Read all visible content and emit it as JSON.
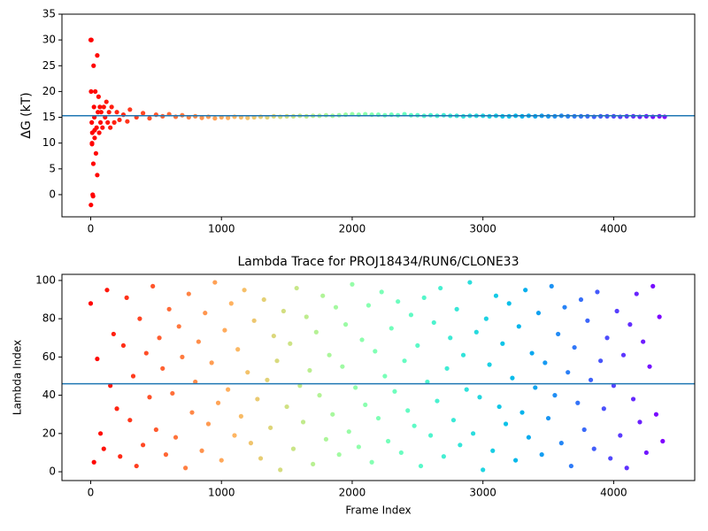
{
  "chart_data": [
    {
      "type": "scatter",
      "ylabel": "ΔG (kT)",
      "colormap": "rainbow_r",
      "hline": 15.3,
      "hline_color": "#1f77b4",
      "xlim": [
        -220,
        4620
      ],
      "ylim": [
        -4.3,
        35
      ],
      "xticks": [
        0,
        1000,
        2000,
        3000,
        4000
      ],
      "yticks": [
        0,
        5,
        10,
        15,
        20,
        25,
        30,
        35
      ],
      "x": [
        0,
        2,
        3,
        5,
        8,
        10,
        10,
        12,
        15,
        18,
        20,
        22,
        25,
        28,
        30,
        30,
        35,
        40,
        45,
        50,
        50,
        55,
        60,
        65,
        70,
        75,
        80,
        90,
        100,
        110,
        120,
        130,
        140,
        150,
        160,
        180,
        200,
        220,
        250,
        280,
        300,
        350,
        400,
        450,
        500,
        550,
        600,
        650,
        700,
        750,
        800,
        850,
        900,
        950,
        1000,
        1050,
        1100,
        1150,
        1200,
        1250,
        1300,
        1350,
        1400,
        1450,
        1500,
        1550,
        1600,
        1650,
        1700,
        1750,
        1800,
        1850,
        1900,
        1950,
        2000,
        2050,
        2100,
        2150,
        2200,
        2250,
        2300,
        2350,
        2400,
        2450,
        2500,
        2550,
        2600,
        2650,
        2700,
        2750,
        2800,
        2850,
        2900,
        2950,
        3000,
        3050,
        3100,
        3150,
        3200,
        3250,
        3300,
        3350,
        3400,
        3450,
        3500,
        3550,
        3600,
        3650,
        3700,
        3750,
        3800,
        3850,
        3900,
        3950,
        4000,
        4050,
        4100,
        4150,
        4200,
        4250,
        4300,
        4350,
        4390
      ],
      "values": [
        30,
        -2,
        20,
        30,
        14,
        10,
        9.8,
        12,
        0,
        -0.3,
        6,
        25,
        17,
        15,
        11,
        12.5,
        20,
        8,
        13,
        27,
        3.8,
        16,
        19,
        12,
        17,
        14,
        16,
        13,
        17,
        15,
        18,
        14,
        16,
        13,
        17,
        14,
        16,
        14.5,
        15.5,
        14.2,
        16.5,
        15,
        15.8,
        14.8,
        15.5,
        15.2,
        15.6,
        15.1,
        15.4,
        15.0,
        15.2,
        14.9,
        15.1,
        14.8,
        15.0,
        14.9,
        15.1,
        15.0,
        14.9,
        15.0,
        15.1,
        15.0,
        15.2,
        15.1,
        15.2,
        15.2,
        15.3,
        15.2,
        15.3,
        15.3,
        15.4,
        15.3,
        15.4,
        15.5,
        15.6,
        15.5,
        15.6,
        15.5,
        15.5,
        15.4,
        15.5,
        15.4,
        15.6,
        15.4,
        15.4,
        15.3,
        15.4,
        15.3,
        15.4,
        15.3,
        15.3,
        15.2,
        15.3,
        15.3,
        15.3,
        15.2,
        15.3,
        15.2,
        15.2,
        15.3,
        15.2,
        15.3,
        15.2,
        15.3,
        15.2,
        15.2,
        15.3,
        15.2,
        15.2,
        15.2,
        15.2,
        15.1,
        15.2,
        15.2,
        15.2,
        15.1,
        15.2,
        15.2,
        15.1,
        15.2,
        15.1,
        15.2,
        15.1
      ]
    },
    {
      "type": "scatter",
      "title": "Lambda Trace for PROJ18434/RUN6/CLONE33",
      "xlabel": "Frame Index",
      "ylabel": "Lambda Index",
      "colormap": "rainbow_r",
      "hline": 46,
      "hline_color": "#1f77b4",
      "xlim": [
        -220,
        4620
      ],
      "ylim": [
        -4.6,
        103.2
      ],
      "xticks": [
        0,
        1000,
        2000,
        3000,
        4000
      ],
      "yticks": [
        0,
        20,
        40,
        60,
        80,
        100
      ],
      "x": [
        0,
        25,
        50,
        75,
        100,
        125,
        150,
        175,
        200,
        225,
        250,
        275,
        300,
        325,
        350,
        375,
        400,
        425,
        450,
        475,
        500,
        525,
        550,
        575,
        600,
        625,
        650,
        675,
        700,
        725,
        750,
        775,
        800,
        825,
        850,
        875,
        900,
        925,
        950,
        975,
        1000,
        1025,
        1050,
        1075,
        1100,
        1125,
        1150,
        1175,
        1200,
        1225,
        1250,
        1275,
        1300,
        1325,
        1350,
        1375,
        1400,
        1425,
        1450,
        1475,
        1500,
        1525,
        1550,
        1575,
        1600,
        1625,
        1650,
        1675,
        1700,
        1725,
        1750,
        1775,
        1800,
        1825,
        1850,
        1875,
        1900,
        1925,
        1950,
        1975,
        2000,
        2025,
        2050,
        2075,
        2100,
        2125,
        2150,
        2175,
        2200,
        2225,
        2250,
        2275,
        2300,
        2325,
        2350,
        2375,
        2400,
        2425,
        2450,
        2475,
        2500,
        2525,
        2550,
        2575,
        2600,
        2625,
        2650,
        2675,
        2700,
        2725,
        2750,
        2775,
        2800,
        2825,
        2850,
        2875,
        2900,
        2925,
        2950,
        2975,
        3000,
        3025,
        3050,
        3075,
        3100,
        3125,
        3150,
        3175,
        3200,
        3225,
        3250,
        3275,
        3300,
        3325,
        3350,
        3375,
        3400,
        3425,
        3450,
        3475,
        3500,
        3525,
        3550,
        3575,
        3600,
        3625,
        3650,
        3675,
        3700,
        3725,
        3750,
        3775,
        3800,
        3825,
        3850,
        3875,
        3900,
        3925,
        3950,
        3975,
        4000,
        4025,
        4050,
        4075,
        4100,
        4125,
        4150,
        4175,
        4200,
        4225,
        4250,
        4275,
        4300,
        4325,
        4350,
        4375
      ],
      "values": [
        88,
        5,
        59,
        20,
        12,
        95,
        45,
        72,
        33,
        8,
        66,
        91,
        27,
        50,
        3,
        80,
        14,
        62,
        39,
        97,
        22,
        70,
        54,
        9,
        85,
        41,
        18,
        76,
        60,
        2,
        93,
        31,
        47,
        68,
        11,
        83,
        25,
        57,
        99,
        36,
        6,
        74,
        43,
        88,
        19,
        64,
        29,
        95,
        52,
        15,
        79,
        38,
        7,
        90,
        48,
        23,
        71,
        58,
        1,
        84,
        34,
        67,
        12,
        96,
        45,
        26,
        81,
        53,
        4,
        73,
        40,
        92,
        17,
        61,
        30,
        86,
        9,
        55,
        77,
        21,
        98,
        44,
        13,
        69,
        35,
        87,
        5,
        63,
        28,
        94,
        50,
        16,
        75,
        42,
        89,
        10,
        58,
        32,
        82,
        24,
        66,
        3,
        91,
        47,
        19,
        78,
        37,
        96,
        8,
        54,
        70,
        27,
        85,
        14,
        61,
        43,
        99,
        20,
        73,
        39,
        1,
        80,
        56,
        11,
        92,
        34,
        67,
        25,
        88,
        49,
        6,
        76,
        31,
        95,
        18,
        62,
        44,
        83,
        9,
        57,
        28,
        97,
        40,
        72,
        15,
        86,
        52,
        3,
        65,
        36,
        90,
        22,
        79,
        48,
        12,
        94,
        58,
        33,
        70,
        7,
        45,
        84,
        19,
        61,
        2,
        77,
        38,
        93,
        26,
        68,
        10,
        55,
        97,
        30,
        81,
        16
      ]
    }
  ]
}
